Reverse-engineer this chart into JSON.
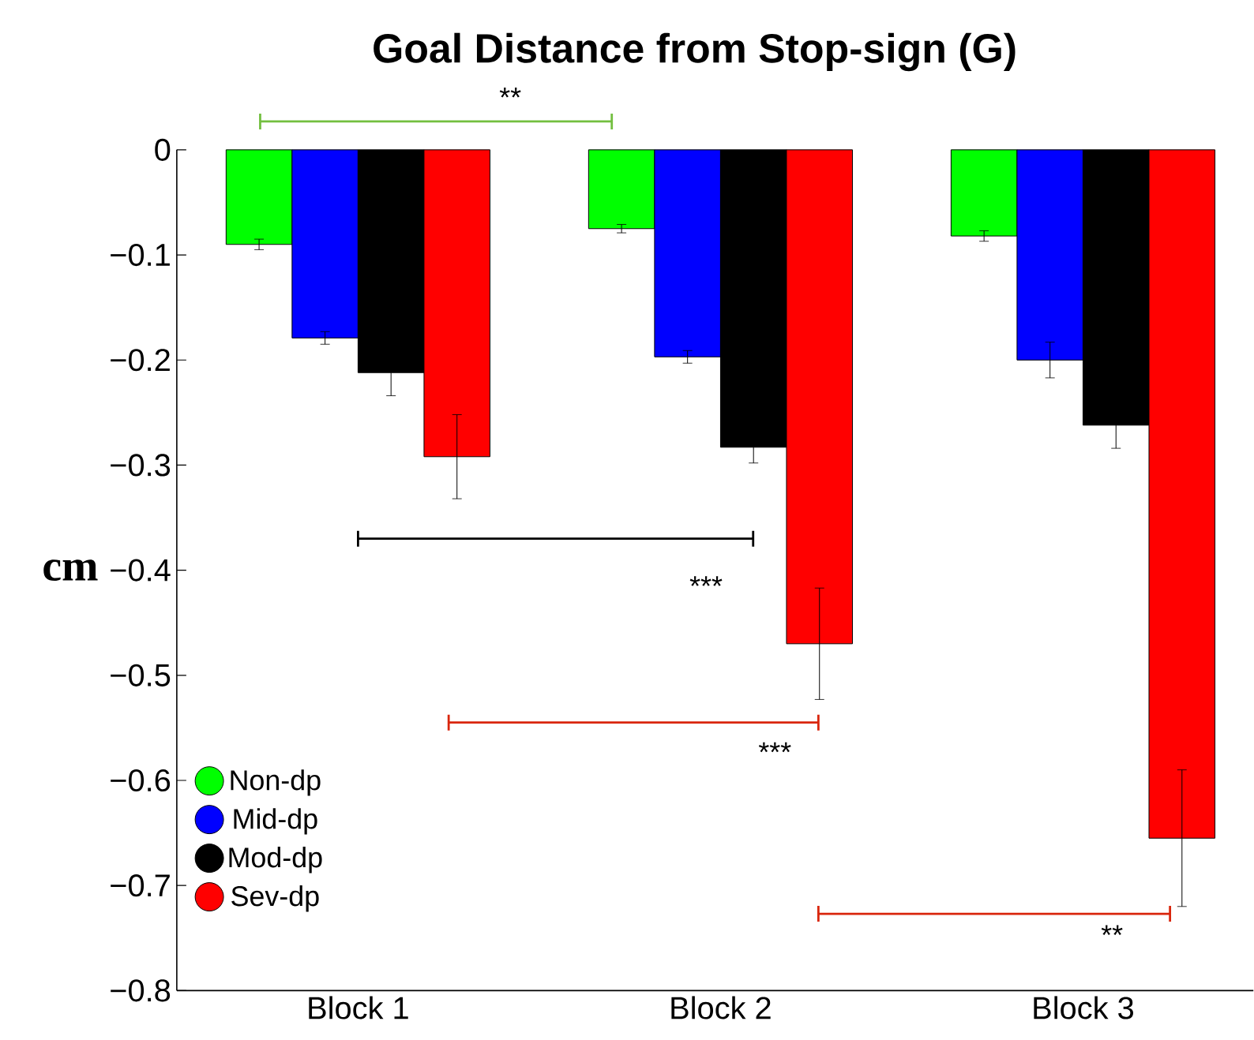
{
  "chart_data": {
    "type": "bar",
    "title": "Goal Distance from Stop-sign (G)",
    "ylabel": "cm",
    "categories": [
      "Block 1",
      "Block 2",
      "Block 3"
    ],
    "series": [
      {
        "name": "Non-dp",
        "color": "#00ff00",
        "values": [
          -0.09,
          -0.075,
          -0.082
        ],
        "errors": [
          0.005,
          0.004,
          0.005
        ]
      },
      {
        "name": "Mid-dp",
        "color": "#0000ff",
        "values": [
          -0.179,
          -0.197,
          -0.2
        ],
        "errors": [
          0.006,
          0.006,
          0.017
        ]
      },
      {
        "name": "Mod-dp",
        "color": "#000000",
        "values": [
          -0.212,
          -0.283,
          -0.262
        ],
        "errors": [
          0.022,
          0.015,
          0.022
        ]
      },
      {
        "name": "Sev-dp",
        "color": "#ff0000",
        "values": [
          -0.292,
          -0.47,
          -0.655
        ],
        "errors": [
          0.04,
          0.053,
          0.065
        ]
      }
    ],
    "ylim": [
      -0.8,
      0
    ],
    "yticks": [
      {
        "value": -0.8,
        "label": "−0.8"
      },
      {
        "value": -0.7,
        "label": "−0.7"
      },
      {
        "value": -0.6,
        "label": "−0.6"
      },
      {
        "value": -0.5,
        "label": "−0.5"
      },
      {
        "value": -0.4,
        "label": "−0.4"
      },
      {
        "value": -0.3,
        "label": "−0.3"
      },
      {
        "value": -0.2,
        "label": "−0.2"
      },
      {
        "value": -0.1,
        "label": "−0.1"
      },
      0
    ],
    "annotations": [
      "**",
      "***",
      "***",
      "**"
    ],
    "legend": "bottom left",
    "grid": false
  }
}
